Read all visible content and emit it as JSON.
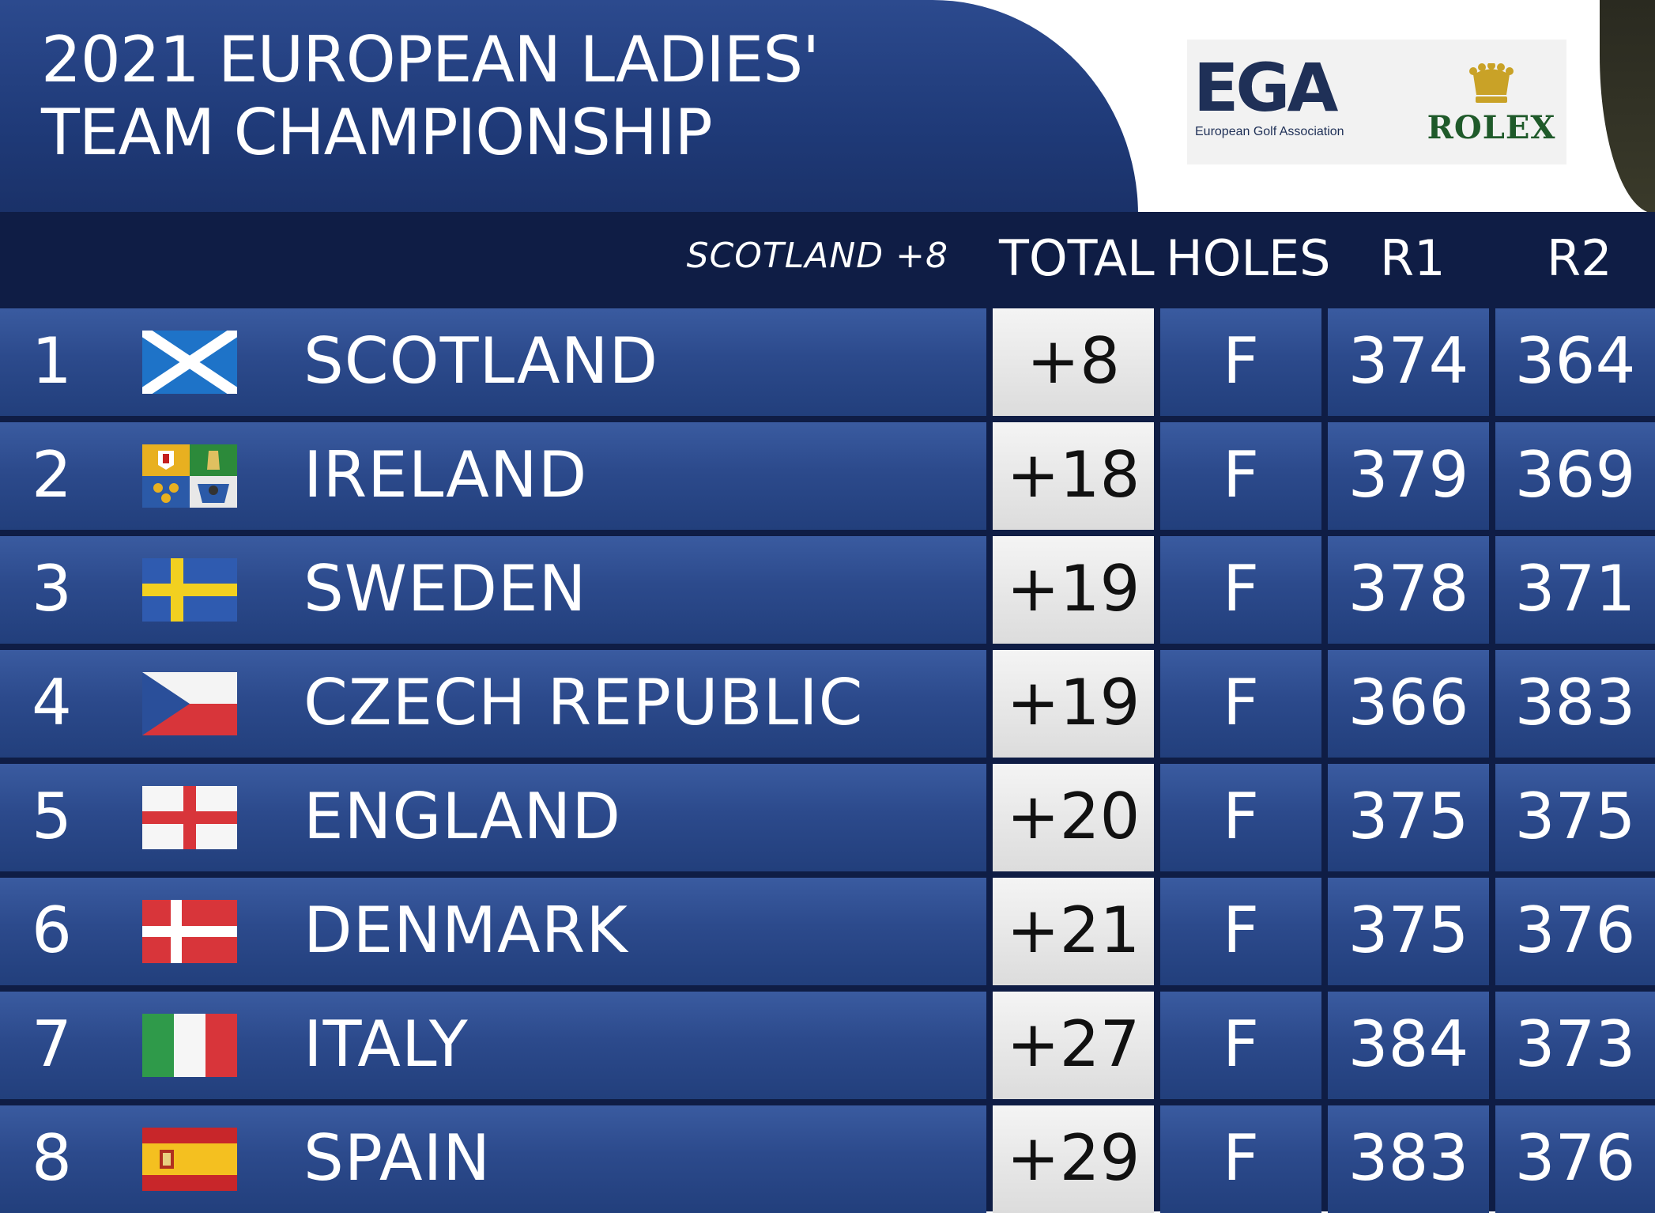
{
  "title": {
    "line1": "2021 EUROPEAN LADIES'",
    "line2": "TEAM CHAMPIONSHIP"
  },
  "logos": {
    "ega_text": "EGA",
    "ega_sub": "European Golf Association",
    "rolex_text": "ROLEX"
  },
  "header": {
    "leader_note": "SCOTLAND +8",
    "total": "TOTAL",
    "holes": "HOLES",
    "r1": "R1",
    "r2": "R2"
  },
  "rows": [
    {
      "pos": "1",
      "flag": "scotland-flag-icon",
      "team": "SCOTLAND",
      "total": "+8",
      "holes": "F",
      "r1": "374",
      "r2": "364"
    },
    {
      "pos": "2",
      "flag": "ireland-four-provinces-flag-icon",
      "team": "IRELAND",
      "total": "+18",
      "holes": "F",
      "r1": "379",
      "r2": "369"
    },
    {
      "pos": "3",
      "flag": "sweden-flag-icon",
      "team": "SWEDEN",
      "total": "+19",
      "holes": "F",
      "r1": "378",
      "r2": "371"
    },
    {
      "pos": "4",
      "flag": "czech-flag-icon",
      "team": "CZECH REPUBLIC",
      "total": "+19",
      "holes": "F",
      "r1": "366",
      "r2": "383"
    },
    {
      "pos": "5",
      "flag": "england-flag-icon",
      "team": "ENGLAND",
      "total": "+20",
      "holes": "F",
      "r1": "375",
      "r2": "375"
    },
    {
      "pos": "6",
      "flag": "denmark-flag-icon",
      "team": "DENMARK",
      "total": "+21",
      "holes": "F",
      "r1": "375",
      "r2": "376"
    },
    {
      "pos": "7",
      "flag": "italy-flag-icon",
      "team": "ITALY",
      "total": "+27",
      "holes": "F",
      "r1": "384",
      "r2": "373"
    },
    {
      "pos": "8",
      "flag": "spain-flag-icon",
      "team": "SPAIN",
      "total": "+29",
      "holes": "F",
      "r1": "383",
      "r2": "376"
    }
  ],
  "colors": {
    "navy_dark": "#0f1d45",
    "row_blue": "#2c4a8c",
    "total_bg": "#e6e6e6"
  }
}
